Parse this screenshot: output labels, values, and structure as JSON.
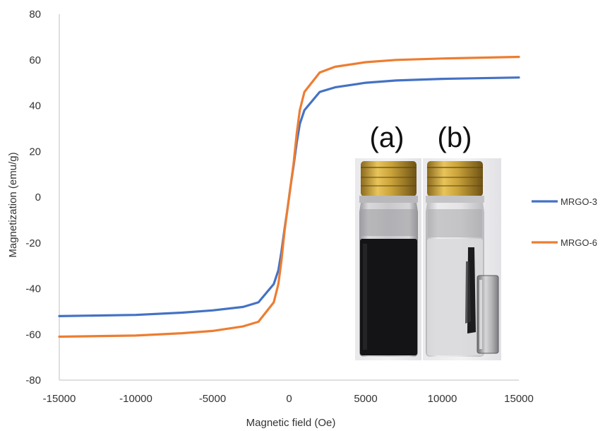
{
  "chart_data": {
    "type": "line",
    "title": "",
    "xlabel": "Magnetic field (Oe)",
    "ylabel": "Magnetization (emu/g)",
    "xlim": [
      -15000,
      15000
    ],
    "ylim": [
      -80,
      80
    ],
    "xticks": [
      -15000,
      -10000,
      -5000,
      0,
      5000,
      10000,
      15000
    ],
    "yticks": [
      80,
      60,
      40,
      20,
      0,
      -20,
      -40,
      -60,
      -80
    ],
    "grid": false,
    "legend_position": "right",
    "series": [
      {
        "name": "MRGO-3",
        "color": "#4472C4",
        "x": [
          -15000,
          -10000,
          -7000,
          -5000,
          -3000,
          -2000,
          -1000,
          -700,
          -500,
          -300,
          -100,
          0,
          100,
          300,
          500,
          700,
          1000,
          2000,
          3000,
          5000,
          7000,
          10000,
          15000
        ],
        "y": [
          -52,
          -51.5,
          -50.5,
          -49.5,
          -48,
          -46,
          -38,
          -32,
          -24,
          -14,
          -5,
          0,
          5,
          14,
          24,
          32,
          38,
          46,
          48,
          50,
          51,
          51.7,
          52.3
        ]
      },
      {
        "name": "MRGO-6",
        "color": "#ED7D31",
        "x": [
          -15000,
          -10000,
          -7000,
          -5000,
          -3000,
          -2000,
          -1000,
          -700,
          -500,
          -300,
          -100,
          0,
          100,
          300,
          500,
          700,
          1000,
          2000,
          3000,
          5000,
          7000,
          10000,
          15000
        ],
        "y": [
          -61,
          -60.5,
          -59.5,
          -58.5,
          -56.5,
          -54.5,
          -46,
          -38,
          -28,
          -15,
          -5,
          0,
          5,
          15,
          28,
          38,
          46,
          54.5,
          57,
          59,
          60,
          60.6,
          61.3
        ]
      }
    ],
    "annotations": [
      "(a)",
      "(b)"
    ]
  }
}
